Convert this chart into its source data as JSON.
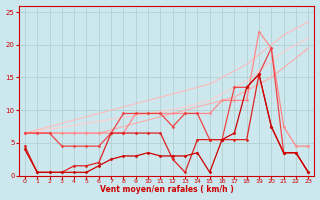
{
  "bg_color": "#cce8ee",
  "grid_color": "#aacccc",
  "xlabel": "Vent moyen/en rafales ( km/h )",
  "xlabel_color": "#cc0000",
  "tick_color": "#cc0000",
  "axis_color": "#cc0000",
  "xlim": [
    -0.5,
    23.5
  ],
  "ylim": [
    0,
    26
  ],
  "yticks": [
    0,
    5,
    10,
    15,
    20,
    25
  ],
  "xticks": [
    0,
    1,
    2,
    3,
    4,
    5,
    6,
    7,
    8,
    9,
    10,
    11,
    12,
    13,
    14,
    15,
    16,
    17,
    18,
    19,
    20,
    21,
    22,
    23
  ],
  "lines": [
    {
      "x": [
        0,
        1,
        2,
        3,
        4,
        5,
        6,
        7,
        8,
        9,
        10,
        11,
        12,
        13,
        14,
        15,
        16,
        17,
        18,
        19,
        20,
        21,
        22,
        23
      ],
      "y": [
        6.5,
        7.0,
        7.5,
        8.0,
        8.5,
        9.0,
        9.5,
        10.0,
        10.5,
        11.0,
        11.5,
        12.0,
        12.5,
        13.0,
        13.5,
        14.0,
        15.0,
        16.0,
        17.0,
        18.5,
        20.0,
        21.5,
        22.5,
        23.5
      ],
      "color": "#ffbbbb",
      "marker": null,
      "markersize": 0,
      "linewidth": 0.8
    },
    {
      "x": [
        0,
        1,
        2,
        3,
        4,
        5,
        6,
        7,
        8,
        9,
        10,
        11,
        12,
        13,
        14,
        15,
        16,
        17,
        18,
        19,
        20,
        21,
        22,
        23
      ],
      "y": [
        6.5,
        6.8,
        7.1,
        7.4,
        7.7,
        8.0,
        8.3,
        8.6,
        8.9,
        9.2,
        9.5,
        9.8,
        10.1,
        10.5,
        11.0,
        11.5,
        12.5,
        13.5,
        14.5,
        16.0,
        17.5,
        19.0,
        20.0,
        21.0
      ],
      "color": "#ffcccc",
      "marker": null,
      "markersize": 0,
      "linewidth": 0.8
    },
    {
      "x": [
        0,
        1,
        2,
        3,
        4,
        5,
        6,
        7,
        8,
        9,
        10,
        11,
        12,
        13,
        14,
        15,
        16,
        17,
        18,
        19,
        20,
        21,
        22,
        23
      ],
      "y": [
        6.5,
        6.5,
        6.5,
        6.5,
        6.5,
        6.5,
        6.5,
        7.0,
        7.5,
        8.0,
        8.5,
        9.0,
        9.5,
        10.0,
        10.5,
        11.0,
        11.5,
        12.0,
        13.0,
        14.0,
        15.0,
        16.5,
        18.0,
        19.5
      ],
      "color": "#ffaaaa",
      "marker": null,
      "markersize": 0,
      "linewidth": 0.8
    },
    {
      "x": [
        0,
        1,
        2,
        3,
        4,
        5,
        6,
        7,
        8,
        9,
        10,
        11,
        12,
        13,
        14,
        15,
        16,
        17,
        18,
        19,
        20,
        21,
        22,
        23
      ],
      "y": [
        6.5,
        6.5,
        6.5,
        6.5,
        6.5,
        6.5,
        6.5,
        6.5,
        6.5,
        9.5,
        9.5,
        9.5,
        9.5,
        9.5,
        9.5,
        9.5,
        11.5,
        11.5,
        11.5,
        22.0,
        19.5,
        7.5,
        4.5,
        4.5
      ],
      "color": "#ff8888",
      "marker": "D",
      "markersize": 1.5,
      "linewidth": 0.9
    },
    {
      "x": [
        0,
        1,
        2,
        3,
        4,
        5,
        6,
        7,
        8,
        9,
        10,
        11,
        12,
        13,
        14,
        15,
        16,
        17,
        18,
        19,
        20,
        21,
        22,
        23
      ],
      "y": [
        6.5,
        6.5,
        6.5,
        4.5,
        4.5,
        4.5,
        4.5,
        6.5,
        9.5,
        9.5,
        9.5,
        9.5,
        7.5,
        9.5,
        9.5,
        5.5,
        5.5,
        13.5,
        13.5,
        15.5,
        19.5,
        3.5,
        3.5,
        0.5
      ],
      "color": "#ee4444",
      "marker": "D",
      "markersize": 1.5,
      "linewidth": 0.9
    },
    {
      "x": [
        0,
        1,
        2,
        3,
        4,
        5,
        6,
        7,
        8,
        9,
        10,
        11,
        12,
        13,
        14,
        15,
        16,
        17,
        18,
        19,
        20,
        21,
        22,
        23
      ],
      "y": [
        4.5,
        0.5,
        0.5,
        0.5,
        1.5,
        1.5,
        2.0,
        6.5,
        6.5,
        6.5,
        6.5,
        6.5,
        2.5,
        0.5,
        5.5,
        5.5,
        5.5,
        5.5,
        5.5,
        15.5,
        7.5,
        3.5,
        3.5,
        0.5
      ],
      "color": "#dd2222",
      "marker": "D",
      "markersize": 1.5,
      "linewidth": 0.9
    },
    {
      "x": [
        0,
        1,
        2,
        3,
        4,
        5,
        6,
        7,
        8,
        9,
        10,
        11,
        12,
        13,
        14,
        15,
        16,
        17,
        18,
        19,
        20,
        21,
        22,
        23
      ],
      "y": [
        4.0,
        0.5,
        0.5,
        0.5,
        0.5,
        0.5,
        1.5,
        2.5,
        3.0,
        3.0,
        3.5,
        3.0,
        3.0,
        3.0,
        3.5,
        0.5,
        5.5,
        6.5,
        13.5,
        15.5,
        7.5,
        3.5,
        3.5,
        0.5
      ],
      "color": "#cc0000",
      "marker": "D",
      "markersize": 1.5,
      "linewidth": 0.9
    }
  ]
}
